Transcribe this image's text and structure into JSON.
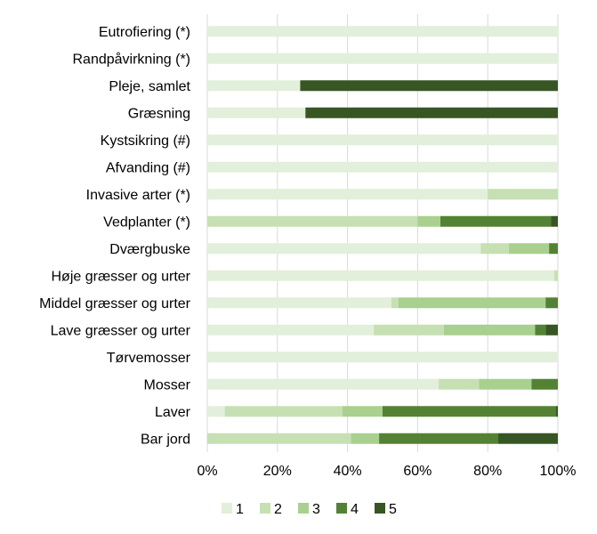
{
  "chart_data": {
    "type": "bar",
    "orientation": "horizontal",
    "stacked": "percent",
    "categories": [
      "Eutrofiering (*)",
      "Randpåvirkning (*)",
      "Pleje, samlet",
      "Græsning",
      "Kystsikring (#)",
      "Afvanding (#)",
      "Invasive arter (*)",
      "Vedplanter (*)",
      "Dværgbuske",
      "Høje græsser og urter",
      "Middel græsser og urter",
      "Lave græsser og urter",
      "Tørvemosser",
      "Mosser",
      "Laver ",
      "Bar jord"
    ],
    "series": [
      {
        "name": "1",
        "color": "#e2efda",
        "values": [
          100,
          100,
          26.5,
          28,
          100,
          100,
          80,
          0,
          78,
          99,
          52.5,
          47.5,
          100,
          66,
          5,
          0
        ]
      },
      {
        "name": "2",
        "color": "#c6e0b4",
        "values": [
          0,
          0,
          0,
          0,
          0,
          0,
          20,
          60,
          8,
          1,
          2,
          20,
          0,
          11.5,
          33.5,
          41
        ]
      },
      {
        "name": "3",
        "color": "#a9d08e",
        "values": [
          0,
          0,
          0,
          0,
          0,
          0,
          0,
          6.5,
          11.5,
          0,
          42,
          26,
          0,
          15,
          11.5,
          8
        ]
      },
      {
        "name": "4",
        "color": "#548235",
        "values": [
          0,
          0,
          0,
          0,
          0,
          0,
          0,
          31.5,
          2.5,
          0,
          3.5,
          3,
          0,
          7.5,
          49.5,
          34
        ]
      },
      {
        "name": "5",
        "color": "#375623",
        "values": [
          0,
          0,
          73.5,
          72,
          0,
          0,
          0,
          2,
          0,
          0,
          0,
          3.5,
          0,
          0,
          0.5,
          17
        ]
      }
    ],
    "x_ticks": [
      "0%",
      "20%",
      "40%",
      "60%",
      "80%",
      "100%"
    ],
    "xlim": [
      0,
      100
    ],
    "grid": "vertical",
    "legend": "bottom"
  }
}
